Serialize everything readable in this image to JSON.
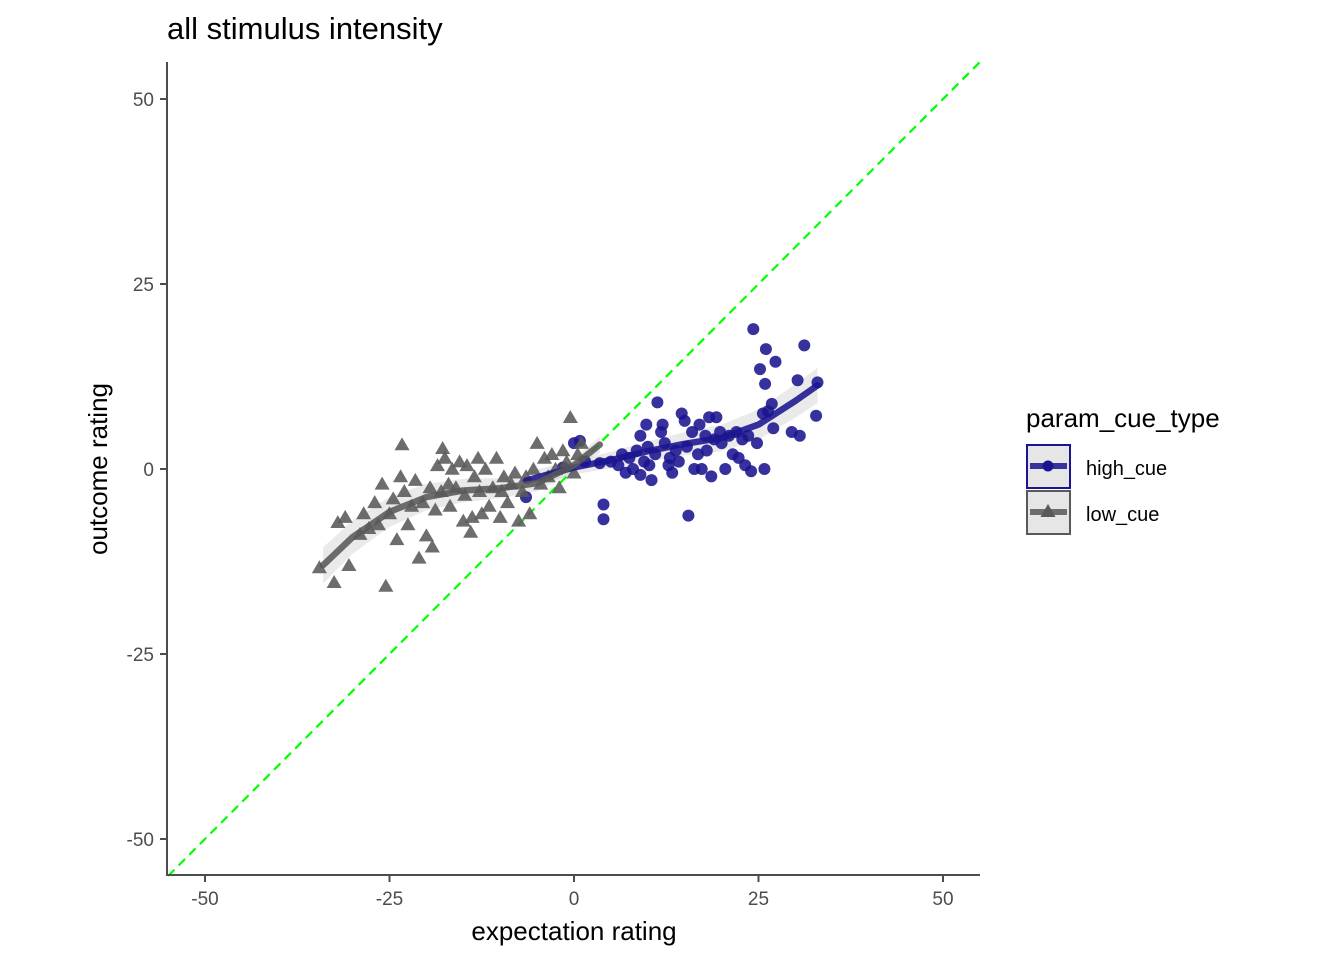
{
  "chart_data": {
    "type": "scatter",
    "title": "all stimulus intensity",
    "xlabel": "expectation rating",
    "ylabel": "outcome rating",
    "xlim": [
      -55,
      55
    ],
    "ylim": [
      -55,
      55
    ],
    "xticks": [
      -50,
      -25,
      0,
      25,
      50
    ],
    "yticks": [
      -50,
      -25,
      0,
      25,
      50
    ],
    "xtick_labels": [
      "-50",
      "-25",
      "0",
      "25",
      "50"
    ],
    "ytick_labels": [
      "-50",
      "-25",
      "0",
      "25",
      "50"
    ],
    "grid": false,
    "reference_line": {
      "slope": 1,
      "intercept": 0,
      "color": "#00ff00",
      "style": "dashed"
    },
    "legend": {
      "title": "param_cue_type",
      "placement": "right",
      "entries": [
        "high_cue",
        "low_cue"
      ]
    },
    "series": [
      {
        "name": "high_cue",
        "color": "#1a1490",
        "marker": "circle",
        "points": [
          [
            -6.5,
            -3.8
          ],
          [
            -1.5,
            0.2
          ],
          [
            0.0,
            3.5
          ],
          [
            0.8,
            3.8
          ],
          [
            1.5,
            1.0
          ],
          [
            3.5,
            0.8
          ],
          [
            4.0,
            -4.8
          ],
          [
            4.0,
            -6.8
          ],
          [
            5.0,
            1.0
          ],
          [
            6.0,
            0.5
          ],
          [
            6.5,
            2.0
          ],
          [
            7.0,
            -0.5
          ],
          [
            7.5,
            1.5
          ],
          [
            8.0,
            0.0
          ],
          [
            8.5,
            2.5
          ],
          [
            9.0,
            -0.8
          ],
          [
            9.0,
            4.5
          ],
          [
            9.5,
            1.0
          ],
          [
            9.8,
            6.0
          ],
          [
            10.0,
            3.0
          ],
          [
            10.2,
            0.5
          ],
          [
            10.5,
            -1.5
          ],
          [
            11.0,
            2.0
          ],
          [
            11.3,
            9.0
          ],
          [
            11.8,
            5.0
          ],
          [
            12.0,
            6.0
          ],
          [
            12.3,
            3.5
          ],
          [
            12.8,
            0.5
          ],
          [
            13.0,
            1.5
          ],
          [
            13.3,
            -0.5
          ],
          [
            13.8,
            2.5
          ],
          [
            14.2,
            1.0
          ],
          [
            14.6,
            7.5
          ],
          [
            15.0,
            6.5
          ],
          [
            15.3,
            3.0
          ],
          [
            15.5,
            -6.3
          ],
          [
            16.0,
            5.0
          ],
          [
            16.3,
            0.0
          ],
          [
            16.8,
            2.0
          ],
          [
            17.0,
            6.0
          ],
          [
            17.3,
            0.0
          ],
          [
            17.8,
            4.5
          ],
          [
            18.0,
            2.5
          ],
          [
            18.3,
            7.0
          ],
          [
            18.6,
            -1.0
          ],
          [
            19.0,
            4.0
          ],
          [
            19.3,
            7.0
          ],
          [
            19.8,
            5.0
          ],
          [
            20.0,
            3.5
          ],
          [
            20.5,
            0.0
          ],
          [
            21.0,
            4.5
          ],
          [
            21.5,
            2.0
          ],
          [
            22.0,
            5.0
          ],
          [
            22.3,
            1.5
          ],
          [
            22.8,
            4.0
          ],
          [
            23.2,
            0.5
          ],
          [
            23.6,
            4.5
          ],
          [
            24.0,
            -0.3
          ],
          [
            24.3,
            18.9
          ],
          [
            24.8,
            3.5
          ],
          [
            25.2,
            13.5
          ],
          [
            25.6,
            7.5
          ],
          [
            25.8,
            0.0
          ],
          [
            25.9,
            11.5
          ],
          [
            26.0,
            16.2
          ],
          [
            26.3,
            7.8
          ],
          [
            26.8,
            8.8
          ],
          [
            27.0,
            5.5
          ],
          [
            27.3,
            14.5
          ],
          [
            29.5,
            5.0
          ],
          [
            30.3,
            12.0
          ],
          [
            30.6,
            4.5
          ],
          [
            31.2,
            16.7
          ],
          [
            32.8,
            7.2
          ],
          [
            33.0,
            11.7
          ]
        ],
        "trend": [
          [
            -6.5,
            -1.6
          ],
          [
            -3,
            -0.6
          ],
          [
            0,
            0.2
          ],
          [
            5,
            1.2
          ],
          [
            10,
            2.4
          ],
          [
            15,
            3.4
          ],
          [
            20,
            4.2
          ],
          [
            25,
            6.0
          ],
          [
            30,
            9.2
          ],
          [
            33,
            11.3
          ]
        ]
      },
      {
        "name": "low_cue",
        "color": "#595959",
        "marker": "triangle",
        "points": [
          [
            -34.5,
            -13.3
          ],
          [
            -32.5,
            -15.3
          ],
          [
            -32.0,
            -7.2
          ],
          [
            -31.0,
            -6.5
          ],
          [
            -30.5,
            -13.0
          ],
          [
            -29.0,
            -8.8
          ],
          [
            -28.5,
            -6.0
          ],
          [
            -27.8,
            -8.0
          ],
          [
            -27.0,
            -4.5
          ],
          [
            -26.5,
            -7.5
          ],
          [
            -26.0,
            -2.0
          ],
          [
            -25.5,
            -15.8
          ],
          [
            -25.0,
            -6.0
          ],
          [
            -24.5,
            -4.0
          ],
          [
            -24.0,
            -9.5
          ],
          [
            -23.5,
            -1.0
          ],
          [
            -23.3,
            3.3
          ],
          [
            -23.0,
            -3.0
          ],
          [
            -22.5,
            -7.5
          ],
          [
            -22.0,
            -5.0
          ],
          [
            -21.5,
            -1.5
          ],
          [
            -21.0,
            -12.0
          ],
          [
            -20.5,
            -4.5
          ],
          [
            -20.0,
            -9.0
          ],
          [
            -19.5,
            -2.5
          ],
          [
            -19.2,
            -10.5
          ],
          [
            -18.8,
            -5.5
          ],
          [
            -18.5,
            0.5
          ],
          [
            -18.0,
            -3.0
          ],
          [
            -17.8,
            2.8
          ],
          [
            -17.5,
            1.5
          ],
          [
            -17.0,
            -2.0
          ],
          [
            -16.8,
            -5.0
          ],
          [
            -16.5,
            0.0
          ],
          [
            -16.0,
            -2.5
          ],
          [
            -15.5,
            1.0
          ],
          [
            -15.0,
            -7.0
          ],
          [
            -14.8,
            -3.5
          ],
          [
            -14.5,
            0.5
          ],
          [
            -14.0,
            -8.5
          ],
          [
            -13.8,
            -6.5
          ],
          [
            -13.5,
            -1.0
          ],
          [
            -13.0,
            1.5
          ],
          [
            -12.8,
            -3.0
          ],
          [
            -12.5,
            -6.0
          ],
          [
            -12.0,
            0.0
          ],
          [
            -11.5,
            -5.0
          ],
          [
            -11.0,
            -2.5
          ],
          [
            -10.5,
            1.5
          ],
          [
            -10.0,
            -6.5
          ],
          [
            -9.8,
            -3.0
          ],
          [
            -9.5,
            -1.0
          ],
          [
            -9.0,
            -4.5
          ],
          [
            -8.5,
            -2.0
          ],
          [
            -8.0,
            -0.5
          ],
          [
            -7.5,
            -7.0
          ],
          [
            -7.0,
            -3.0
          ],
          [
            -6.5,
            -1.0
          ],
          [
            -6.0,
            -6.0
          ],
          [
            -5.5,
            0.0
          ],
          [
            -5.0,
            3.5
          ],
          [
            -4.5,
            -2.0
          ],
          [
            -4.0,
            1.5
          ],
          [
            -3.5,
            -1.0
          ],
          [
            -3.0,
            2.0
          ],
          [
            -2.5,
            0.0
          ],
          [
            -2.0,
            -2.5
          ],
          [
            -1.5,
            2.5
          ],
          [
            -1.0,
            1.0
          ],
          [
            -0.5,
            7.0
          ],
          [
            0.0,
            -0.5
          ],
          [
            0.5,
            2.0
          ],
          [
            1.0,
            3.5
          ]
        ],
        "trend": [
          [
            -34,
            -13.0
          ],
          [
            -30,
            -9.2
          ],
          [
            -25,
            -5.8
          ],
          [
            -20,
            -3.8
          ],
          [
            -15,
            -2.9
          ],
          [
            -10,
            -2.6
          ],
          [
            -5,
            -1.9
          ],
          [
            0,
            0.5
          ],
          [
            3.5,
            3.3
          ]
        ]
      }
    ]
  }
}
